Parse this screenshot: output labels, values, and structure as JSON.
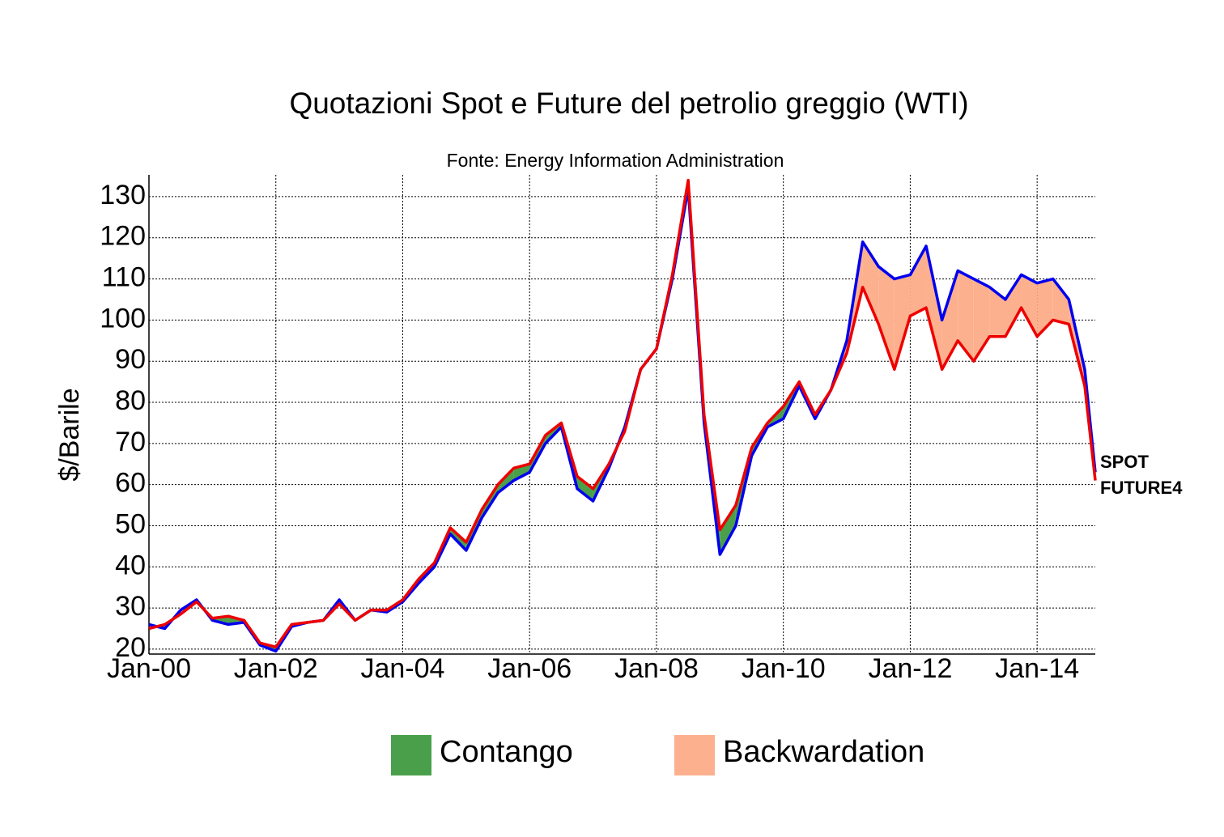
{
  "chart_data": {
    "type": "line",
    "title": "Quotazioni Spot e Future del petrolio greggio (WTI)",
    "subtitle": "Fonte: Energy Information Administration",
    "ylabel": "$/Barile",
    "x": [
      "2000-01",
      "2000-04",
      "2000-07",
      "2000-10",
      "2001-01",
      "2001-04",
      "2001-07",
      "2001-10",
      "2002-01",
      "2002-04",
      "2002-07",
      "2002-10",
      "2003-01",
      "2003-04",
      "2003-07",
      "2003-10",
      "2004-01",
      "2004-04",
      "2004-07",
      "2004-10",
      "2005-01",
      "2005-04",
      "2005-07",
      "2005-10",
      "2006-01",
      "2006-04",
      "2006-07",
      "2006-10",
      "2007-01",
      "2007-04",
      "2007-07",
      "2007-10",
      "2008-01",
      "2008-04",
      "2008-07",
      "2008-10",
      "2009-01",
      "2009-04",
      "2009-07",
      "2009-10",
      "2010-01",
      "2010-04",
      "2010-07",
      "2010-10",
      "2011-01",
      "2011-04",
      "2011-07",
      "2011-10",
      "2012-01",
      "2012-04",
      "2012-07",
      "2012-10",
      "2013-01",
      "2013-04",
      "2013-07",
      "2013-10",
      "2014-01",
      "2014-04",
      "2014-07",
      "2014-10",
      "2014-12"
    ],
    "series": [
      {
        "name": "SPOT",
        "color": "#0000ee",
        "values": [
          26,
          25,
          29.5,
          32,
          27,
          26,
          26.5,
          21,
          19.5,
          25.5,
          26.5,
          27,
          32,
          27,
          29.5,
          29,
          31.5,
          36,
          40,
          48,
          44,
          52,
          58,
          61,
          63,
          70,
          74,
          59,
          56,
          64,
          74,
          88,
          93,
          110,
          132,
          75,
          43,
          50,
          67,
          74,
          76,
          84,
          76,
          83,
          95,
          119,
          113,
          110,
          111,
          118,
          100,
          112,
          110,
          108,
          105,
          111,
          109,
          110,
          105,
          88,
          63
        ]
      },
      {
        "name": "FUTURE4",
        "color": "#ee0000",
        "values": [
          25,
          26,
          28.5,
          31.5,
          27.5,
          28,
          27,
          21.5,
          20.5,
          26,
          26.5,
          27,
          31,
          27,
          29.5,
          29.5,
          32,
          37,
          41,
          49.5,
          46,
          54,
          60,
          64,
          65,
          72,
          75,
          62,
          59,
          65,
          73,
          88,
          93,
          111,
          134,
          77,
          49,
          55,
          69,
          75,
          79,
          85,
          77,
          83,
          92,
          108,
          99,
          88,
          101,
          103,
          88,
          95,
          90,
          96,
          96,
          103,
          96,
          100,
          99,
          84,
          61
        ]
      }
    ],
    "fill_legend": [
      {
        "name": "Contango",
        "color": "#4aa04a"
      },
      {
        "name": "Backwardation",
        "color": "#fdb08e"
      }
    ],
    "xlim": [
      "2000-01",
      "2014-12"
    ],
    "xticks": [
      {
        "value": "2000-01",
        "label": "Jan-00"
      },
      {
        "value": "2002-01",
        "label": "Jan-02"
      },
      {
        "value": "2004-01",
        "label": "Jan-04"
      },
      {
        "value": "2006-01",
        "label": "Jan-06"
      },
      {
        "value": "2008-01",
        "label": "Jan-08"
      },
      {
        "value": "2010-01",
        "label": "Jan-10"
      },
      {
        "value": "2012-01",
        "label": "Jan-12"
      },
      {
        "value": "2014-01",
        "label": "Jan-14"
      }
    ],
    "ylim": [
      18.8,
      135.3
    ],
    "yticks": [
      20,
      30,
      40,
      50,
      60,
      70,
      80,
      90,
      100,
      110,
      120,
      130
    ],
    "grid": true
  }
}
